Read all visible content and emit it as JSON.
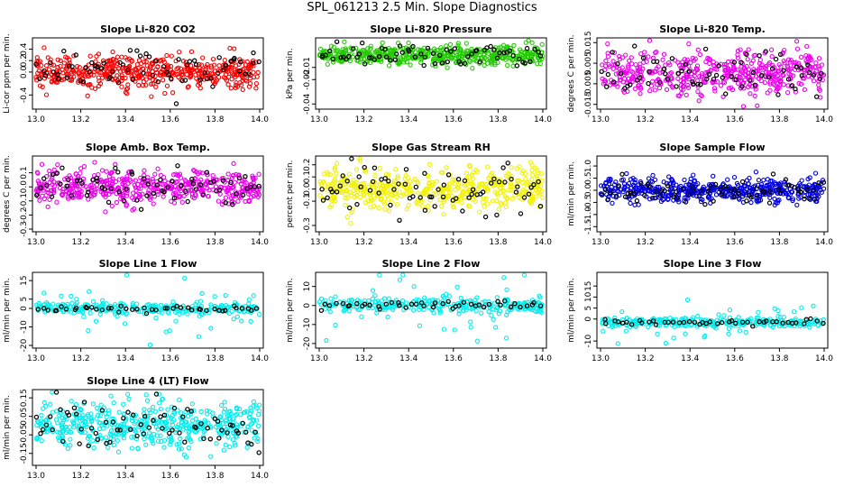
{
  "page": {
    "title": "SPL_061213  2.5 Min. Slope Diagnostics"
  },
  "colors": {
    "red": "#ff0000",
    "green": "#22cc00",
    "magenta": "#ee00ee",
    "yellow": "#f2f200",
    "blue": "#0000dd",
    "cyan": "#00eeee",
    "black": "#000000"
  },
  "chart_data": [
    {
      "type": "scatter",
      "title": "Slope Li-820 CO2",
      "ylabel": "Li-cor ppm per min.",
      "xlim": [
        13.0,
        14.0
      ],
      "xticks": [
        "13.0",
        "13.2",
        "13.4",
        "13.6",
        "13.8",
        "14.0"
      ],
      "ylim": [
        -0.6,
        0.55
      ],
      "yticks": [
        "-0.4",
        "0.0",
        "0.2",
        "0.4"
      ],
      "yticks_values": [
        -0.4,
        0.0,
        0.2,
        0.4
      ],
      "color": "red",
      "center": 0.0,
      "spread": 0.15,
      "dense": true
    },
    {
      "type": "scatter",
      "title": "Slope Li-820 Pressure",
      "ylabel": "kPa per min.",
      "xlim": [
        13.0,
        14.0
      ],
      "xticks": [
        "13.0",
        "13.2",
        "13.4",
        "13.6",
        "13.8",
        "14.0"
      ],
      "ylim": [
        -0.042,
        0.012
      ],
      "yticks": [
        "-0.04",
        "-0.02",
        "-0.01"
      ],
      "yticks_values": [
        -0.04,
        -0.02,
        -0.01
      ],
      "color": "green",
      "center": 0.0,
      "spread": 0.004,
      "dense": true
    },
    {
      "type": "scatter",
      "title": "Slope Li-820 Temp.",
      "ylabel": "degrees C per min.",
      "xlim": [
        13.0,
        14.0
      ],
      "xticks": [
        "13.0",
        "13.2",
        "13.4",
        "13.6",
        "13.8",
        "14.0"
      ],
      "ylim": [
        -0.016,
        0.016
      ],
      "yticks": [
        "-0.015",
        "-0.005",
        "0.005",
        "0.015"
      ],
      "yticks_values": [
        -0.015,
        -0.005,
        0.005,
        0.015
      ],
      "color": "magenta",
      "center": 0.0,
      "spread": 0.005,
      "dense": true
    },
    {
      "type": "scatter",
      "title": "Slope Amb. Box Temp.",
      "ylabel": "degrees C per min.",
      "xlim": [
        13.0,
        14.0
      ],
      "xticks": [
        "13.0",
        "13.2",
        "13.4",
        "13.6",
        "13.8",
        "14.0"
      ],
      "ylim": [
        -0.3,
        0.2
      ],
      "yticks": [
        "-0.3",
        "-0.2",
        "-0.1",
        "0.0",
        "0.1"
      ],
      "yticks_values": [
        -0.3,
        -0.2,
        -0.1,
        0.0,
        0.1
      ],
      "color": "magenta",
      "center": 0.0,
      "spread": 0.06,
      "dense": true
    },
    {
      "type": "scatter",
      "title": "Slope Gas Stream RH",
      "ylabel": "percent per min.",
      "xlim": [
        13.0,
        14.0
      ],
      "xticks": [
        "13.0",
        "13.2",
        "13.4",
        "13.6",
        "13.8",
        "14.0"
      ],
      "ylim": [
        -0.33,
        0.25
      ],
      "yticks": [
        "-0.3",
        "-0.1",
        "0.0",
        "0.1",
        "0.2"
      ],
      "yticks_values": [
        -0.3,
        -0.1,
        0.0,
        0.1,
        0.2
      ],
      "color": "yellow",
      "center": 0.0,
      "spread": 0.08,
      "dense": true
    },
    {
      "type": "scatter",
      "title": "Slope Sample Flow",
      "ylabel": "ml/min per min.",
      "xlim": [
        13.0,
        14.0
      ],
      "xticks": [
        "13.0",
        "13.2",
        "13.4",
        "13.6",
        "13.8",
        "14.0"
      ],
      "ylim": [
        -1.6,
        1.3
      ],
      "yticks": [
        "-1.5",
        "-1.0",
        "-0.5",
        "0.0",
        "0.5",
        "1.0"
      ],
      "yticks_values": [
        -1.5,
        -1.0,
        -0.5,
        0.0,
        0.5,
        1.0
      ],
      "color": "blue",
      "center": 0.0,
      "spread": 0.25,
      "dense": true
    },
    {
      "type": "scatter",
      "title": "Slope Line 1 Flow",
      "ylabel": "ml/min per min.",
      "xlim": [
        13.0,
        14.0
      ],
      "xticks": [
        "13.0",
        "13.2",
        "13.4",
        "13.6",
        "13.8",
        "14.0"
      ],
      "ylim": [
        -20,
        18
      ],
      "yticks": [
        "-20",
        "-10",
        "0",
        "5",
        "15"
      ],
      "yticks_values": [
        -20,
        -10,
        0,
        5,
        15
      ],
      "color": "cyan",
      "center": 0.0,
      "spread": 2.5,
      "dense": false
    },
    {
      "type": "scatter",
      "title": "Slope Line 2 Flow",
      "ylabel": "ml/min per min.",
      "xlim": [
        13.0,
        14.0
      ],
      "xticks": [
        "13.0",
        "13.2",
        "13.4",
        "13.6",
        "13.8",
        "14.0"
      ],
      "ylim": [
        -21,
        16
      ],
      "yticks": [
        "-20",
        "-10",
        "0",
        "10"
      ],
      "yticks_values": [
        -20,
        -10,
        0,
        10
      ],
      "color": "cyan",
      "center": 0.0,
      "spread": 3.0,
      "dense": false
    },
    {
      "type": "scatter",
      "title": "Slope Line 3 Flow",
      "ylabel": "ml/min per min.",
      "xlim": [
        13.0,
        14.0
      ],
      "xticks": [
        "13.0",
        "13.2",
        "13.4",
        "13.6",
        "13.8",
        "14.0"
      ],
      "ylim": [
        -12,
        20
      ],
      "yticks": [
        "-10",
        "0",
        "5",
        "10",
        "15"
      ],
      "yticks_values": [
        -10,
        0,
        5,
        10,
        15
      ],
      "color": "cyan",
      "center": -1.5,
      "spread": 1.8,
      "dense": false
    },
    {
      "type": "scatter",
      "title": "Slope Line 4 (LT) Flow",
      "ylabel": "ml/min per min.",
      "xlim": [
        13.0,
        14.0
      ],
      "xticks": [
        "13.0",
        "13.2",
        "13.4",
        "13.6",
        "13.8",
        "14.0"
      ],
      "ylim": [
        -0.2,
        0.18
      ],
      "yticks": [
        "-0.15",
        "-0.05",
        "0.05",
        "0.15"
      ],
      "yticks_values": [
        -0.15,
        -0.05,
        0.05,
        0.15
      ],
      "color": "cyan",
      "center": 0.0,
      "spread": 0.06,
      "dense": true
    }
  ]
}
